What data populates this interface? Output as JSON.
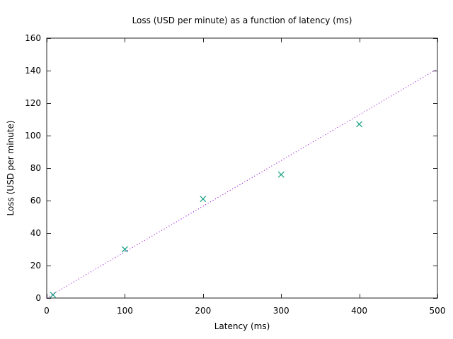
{
  "chart_data": {
    "type": "scatter",
    "title": "Loss (USD per minute) as a function of latency (ms)",
    "xlabel": "Latency (ms)",
    "ylabel": "Loss (USD per minute)",
    "xlim": [
      0,
      500
    ],
    "ylim": [
      0,
      160
    ],
    "xticks": [
      0,
      100,
      200,
      300,
      400,
      500
    ],
    "yticks": [
      0,
      20,
      40,
      60,
      80,
      100,
      120,
      140,
      160
    ],
    "grid": false,
    "legend": "none",
    "tick_style": "inward-mirrored",
    "series": [
      {
        "name": "measured-loss-points",
        "type": "scatter",
        "marker": "x",
        "color": "#1fa487",
        "points": [
          [
            8,
            2
          ],
          [
            100,
            30
          ],
          [
            200,
            61
          ],
          [
            300,
            76
          ],
          [
            400,
            107
          ]
        ]
      },
      {
        "name": "linear-trend-line",
        "type": "line",
        "style": "dotted",
        "color": "#9400d3",
        "points": [
          [
            0,
            0.2
          ],
          [
            500,
            141
          ]
        ]
      }
    ],
    "colors": {
      "background": "#ffffff",
      "axis": "#262626",
      "text": "#000000"
    }
  }
}
